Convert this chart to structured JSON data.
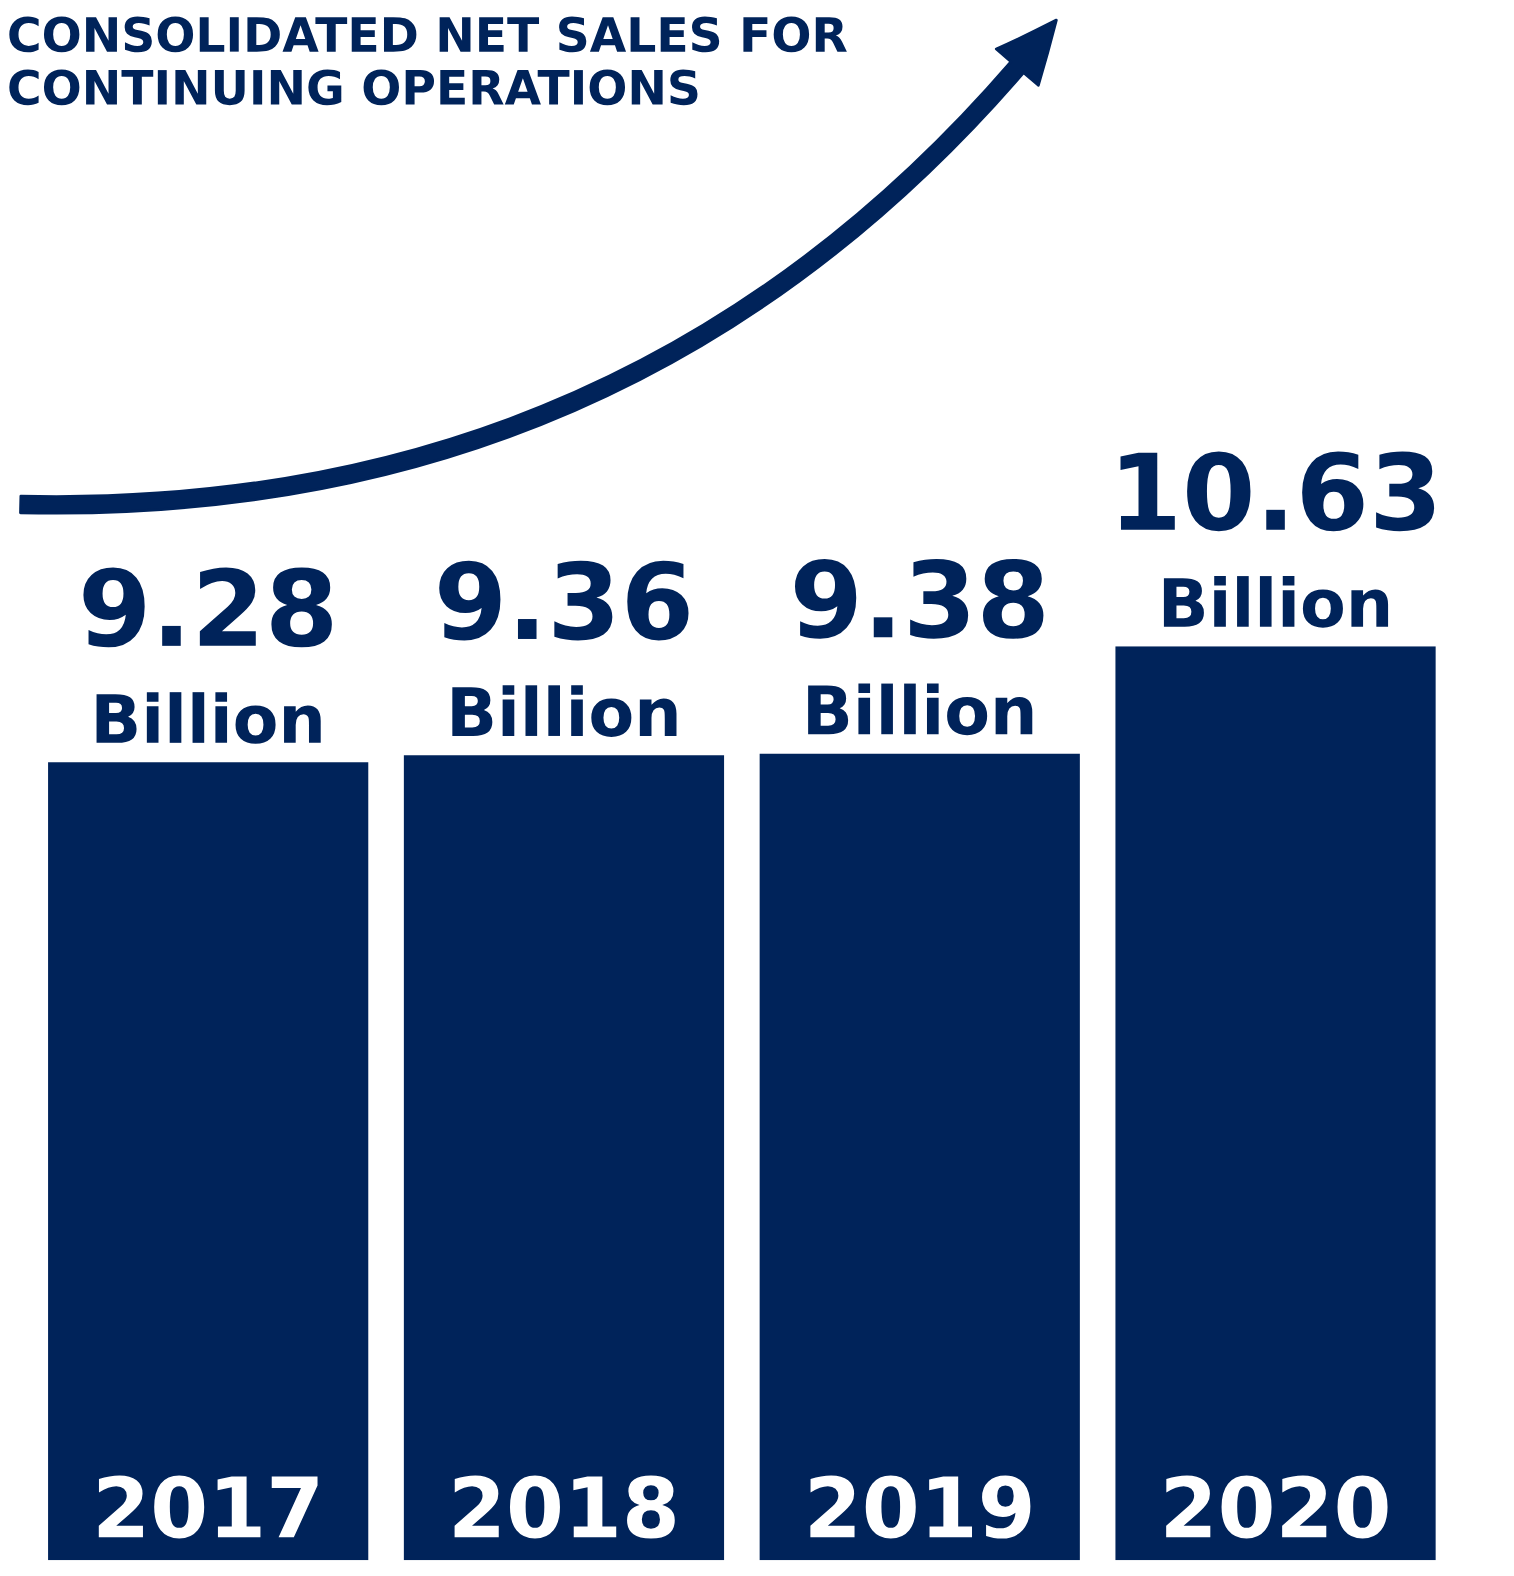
{
  "chart_data": {
    "type": "bar",
    "title": "CONSOLIDATED NET SALES FOR CONTINUING OPERATIONS",
    "categories": [
      "2017",
      "2018",
      "2019",
      "2020"
    ],
    "values": [
      9.28,
      9.36,
      9.38,
      10.63
    ],
    "value_labels": [
      "9.28 Billion",
      "9.36 Billion",
      "9.38 Billion",
      "10.63 Billion"
    ],
    "color": "#00235a"
  }
}
